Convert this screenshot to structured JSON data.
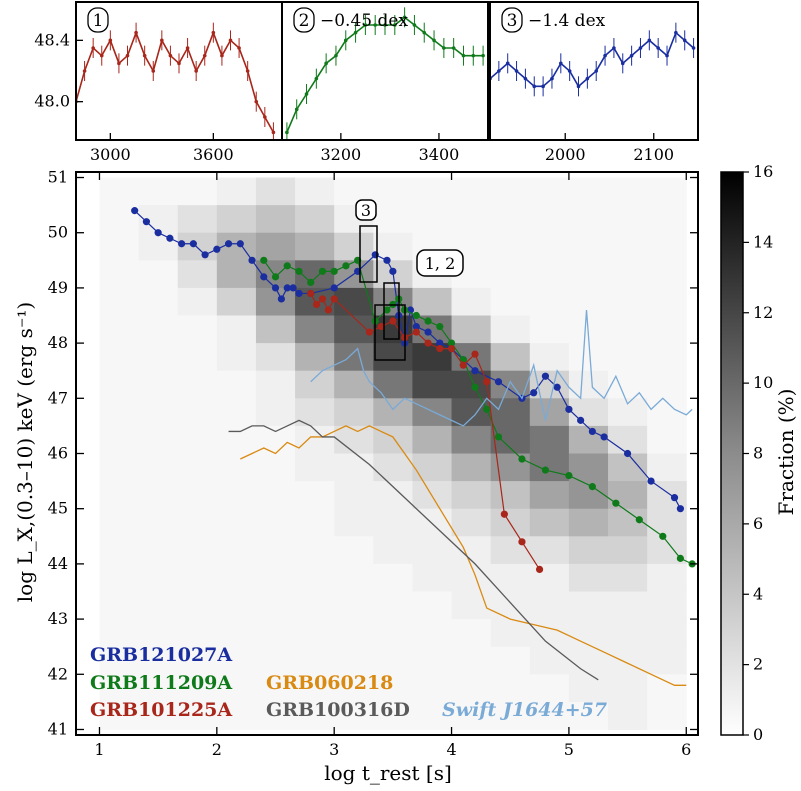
{
  "chart_data": [
    {
      "type": "heatmap",
      "panel": "main",
      "xlabel": "log t_rest [s]",
      "ylabel": "log L_X,(0.3–10) keV (erg s⁻¹)",
      "xlim": [
        0.8,
        6.1
      ],
      "ylim": [
        40.9,
        51.1
      ],
      "xticks": [
        "1",
        "2",
        "3",
        "4",
        "5",
        "6"
      ],
      "yticks": [
        "41",
        "42",
        "43",
        "44",
        "45",
        "46",
        "47",
        "48",
        "49",
        "50",
        "51"
      ],
      "colorbar": {
        "label": "Fraction (%)",
        "min": 0,
        "max": 16,
        "ticks": [
          "0",
          "2",
          "4",
          "6",
          "8",
          "10",
          "12",
          "14",
          "16"
        ]
      },
      "series": [
        {
          "name": "GRB121027A",
          "color": "#1a2ea0",
          "marker": "dot",
          "x": [
            1.3,
            1.4,
            1.5,
            1.6,
            1.7,
            1.8,
            1.9,
            2.0,
            2.1,
            2.2,
            2.3,
            2.4,
            2.5,
            2.55,
            2.6,
            2.65,
            2.7,
            2.8,
            3.0,
            3.2,
            3.35,
            3.45,
            3.5,
            3.55,
            3.6,
            3.65,
            3.7,
            3.8,
            3.9,
            4.0,
            4.1,
            4.2,
            4.4,
            4.6,
            4.7,
            4.8,
            4.9,
            5.0,
            5.1,
            5.2,
            5.3,
            5.5,
            5.7,
            5.9,
            5.95
          ],
          "y": [
            50.4,
            50.2,
            50.0,
            49.9,
            49.8,
            49.8,
            49.6,
            49.7,
            49.8,
            49.8,
            49.5,
            49.2,
            49.0,
            48.8,
            49.0,
            49.0,
            48.9,
            48.9,
            49.0,
            49.3,
            49.6,
            49.5,
            49.3,
            48.5,
            48.0,
            48.6,
            48.3,
            48.2,
            48.0,
            47.9,
            47.7,
            47.5,
            47.3,
            47.0,
            47.1,
            47.4,
            47.2,
            46.8,
            46.6,
            46.4,
            46.3,
            46.0,
            45.5,
            45.2,
            45.0
          ]
        },
        {
          "name": "GRB111209A",
          "color": "#0f7a1a",
          "marker": "dot",
          "x": [
            2.4,
            2.5,
            2.6,
            2.7,
            2.8,
            2.9,
            3.0,
            3.1,
            3.2,
            3.35,
            3.45,
            3.5,
            3.55,
            3.6,
            3.7,
            3.8,
            3.9,
            4.0,
            4.1,
            4.2,
            4.3,
            4.4,
            4.6,
            4.8,
            5.0,
            5.2,
            5.4,
            5.6,
            5.8,
            5.95,
            6.05
          ],
          "y": [
            49.5,
            49.2,
            49.4,
            49.3,
            49.1,
            49.3,
            49.3,
            49.4,
            49.5,
            48.4,
            48.6,
            48.7,
            48.8,
            48.6,
            48.5,
            48.4,
            48.3,
            48.0,
            47.7,
            47.2,
            46.8,
            46.3,
            45.9,
            45.7,
            45.6,
            45.4,
            45.1,
            44.8,
            44.5,
            44.1,
            44.0
          ]
        },
        {
          "name": "GRB101225A",
          "color": "#a8261a",
          "marker": "dot",
          "x": [
            2.8,
            2.85,
            2.9,
            2.95,
            3.0,
            3.3,
            3.4,
            3.5,
            3.6,
            3.7,
            3.8,
            3.9,
            4.0,
            4.1,
            4.2,
            4.3,
            4.45,
            4.6,
            4.75
          ],
          "y": [
            48.9,
            48.7,
            48.8,
            48.6,
            48.8,
            48.2,
            48.3,
            48.4,
            48.1,
            48.2,
            48.0,
            47.9,
            47.9,
            47.6,
            47.8,
            47.3,
            44.9,
            44.4,
            43.9
          ]
        },
        {
          "name": "GRB060218",
          "color": "#d98a12",
          "marker": "line",
          "x": [
            2.2,
            2.3,
            2.4,
            2.5,
            2.6,
            2.7,
            2.8,
            2.9,
            3.0,
            3.1,
            3.2,
            3.3,
            3.4,
            3.5,
            3.7,
            3.9,
            4.1,
            4.2,
            4.3,
            4.5,
            4.7,
            4.9,
            5.1,
            5.3,
            5.5,
            5.7,
            5.9,
            6.0
          ],
          "y": [
            45.9,
            46.0,
            46.1,
            46.0,
            46.2,
            46.1,
            46.3,
            46.3,
            46.4,
            46.5,
            46.4,
            46.5,
            46.4,
            46.3,
            45.7,
            45.0,
            44.3,
            43.8,
            43.2,
            43.0,
            42.9,
            42.8,
            42.6,
            42.4,
            42.2,
            42.0,
            41.8,
            41.8
          ]
        },
        {
          "name": "GRB100316D",
          "color": "#5a5a5a",
          "marker": "line",
          "x": [
            2.1,
            2.2,
            2.3,
            2.4,
            2.5,
            2.6,
            2.7,
            2.8,
            2.9,
            3.0,
            3.3,
            3.6,
            3.9,
            4.2,
            4.5,
            4.8,
            5.1,
            5.25
          ],
          "y": [
            46.4,
            46.4,
            46.5,
            46.5,
            46.4,
            46.5,
            46.6,
            46.5,
            46.3,
            46.3,
            45.8,
            45.2,
            44.6,
            44.0,
            43.3,
            42.6,
            42.1,
            41.9
          ]
        },
        {
          "name": "Swift J1644+57",
          "color": "#7aaad6",
          "marker": "line",
          "x": [
            2.8,
            2.9,
            3.0,
            3.1,
            3.2,
            3.25,
            3.3,
            3.4,
            3.5,
            3.6,
            3.7,
            3.8,
            3.9,
            4.0,
            4.1,
            4.2,
            4.3,
            4.4,
            4.5,
            4.6,
            4.7,
            4.8,
            4.9,
            5.0,
            5.1,
            5.15,
            5.2,
            5.3,
            5.4,
            5.5,
            5.6,
            5.7,
            5.8,
            5.9,
            6.0,
            6.05
          ],
          "y": [
            47.3,
            47.5,
            47.6,
            47.7,
            47.9,
            47.5,
            47.3,
            47.1,
            46.8,
            47.0,
            46.9,
            46.8,
            46.7,
            46.6,
            46.5,
            46.7,
            47.0,
            46.8,
            47.3,
            47.0,
            47.6,
            46.6,
            47.5,
            47.2,
            47.0,
            48.6,
            47.2,
            47.0,
            47.4,
            46.9,
            47.1,
            46.8,
            47.0,
            46.8,
            46.7,
            46.8
          ]
        }
      ],
      "annotations": [
        "3",
        "1, 2"
      ],
      "heatmap": [
        [
          0,
          0,
          0,
          1,
          2,
          1,
          0,
          0,
          0,
          0,
          0,
          0,
          0,
          0,
          0
        ],
        [
          0,
          1,
          2,
          3,
          4,
          3,
          1,
          0,
          0,
          0,
          0,
          0,
          0,
          0,
          0
        ],
        [
          0,
          1,
          3,
          5,
          6,
          5,
          3,
          1,
          0,
          0,
          0,
          0,
          0,
          0,
          0
        ],
        [
          0,
          0,
          2,
          5,
          8,
          10,
          7,
          3,
          1,
          0,
          0,
          0,
          0,
          0,
          0
        ],
        [
          0,
          0,
          1,
          3,
          7,
          11,
          12,
          8,
          4,
          1,
          0,
          0,
          0,
          0,
          0
        ],
        [
          0,
          0,
          0,
          1,
          4,
          8,
          11,
          13,
          9,
          4,
          1,
          0,
          0,
          0,
          0
        ],
        [
          0,
          0,
          0,
          1,
          2,
          5,
          9,
          12,
          13,
          9,
          4,
          1,
          0,
          0,
          0
        ],
        [
          0,
          0,
          0,
          0,
          1,
          3,
          5,
          9,
          12,
          12,
          8,
          3,
          1,
          0,
          0
        ],
        [
          0,
          0,
          0,
          0,
          1,
          2,
          3,
          5,
          8,
          11,
          10,
          6,
          2,
          1,
          0
        ],
        [
          0,
          0,
          0,
          0,
          0,
          1,
          2,
          3,
          5,
          8,
          10,
          9,
          5,
          2,
          0
        ],
        [
          0,
          0,
          0,
          0,
          0,
          1,
          1,
          2,
          3,
          5,
          7,
          9,
          7,
          4,
          1
        ],
        [
          0,
          0,
          0,
          0,
          0,
          0,
          1,
          1,
          2,
          3,
          4,
          6,
          7,
          5,
          2
        ],
        [
          0,
          0,
          0,
          0,
          0,
          0,
          1,
          1,
          1,
          2,
          3,
          4,
          5,
          4,
          2
        ],
        [
          0,
          0,
          0,
          0,
          0,
          0,
          0,
          1,
          1,
          1,
          2,
          2,
          3,
          3,
          2
        ],
        [
          0,
          0,
          0,
          0,
          0,
          0,
          0,
          0,
          1,
          1,
          1,
          1,
          2,
          2,
          1
        ],
        [
          0,
          0,
          0,
          0,
          0,
          0,
          0,
          0,
          0,
          1,
          1,
          1,
          1,
          1,
          1
        ],
        [
          0,
          0,
          0,
          0,
          0,
          0,
          0,
          0,
          0,
          0,
          1,
          1,
          1,
          1,
          1
        ],
        [
          0,
          0,
          0,
          0,
          0,
          0,
          0,
          0,
          0,
          0,
          0,
          1,
          1,
          1,
          1
        ],
        [
          0,
          0,
          0,
          0,
          0,
          0,
          0,
          0,
          0,
          0,
          0,
          0,
          1,
          1,
          0
        ],
        [
          0,
          0,
          0,
          0,
          0,
          0,
          0,
          0,
          0,
          0,
          0,
          0,
          0,
          1,
          0
        ]
      ],
      "heatmap_x_range": [
        1.0,
        6.0
      ],
      "heatmap_y_range": [
        51.0,
        41.0
      ]
    },
    {
      "type": "line",
      "panel": "inset-1",
      "label": "1",
      "note": "",
      "color": "#a8261a",
      "xlim": [
        2800,
        4000
      ],
      "ylim": [
        47.75,
        48.65
      ],
      "xticks": [
        "3000",
        "3600"
      ],
      "yticks": [
        "48.0",
        "48.4"
      ],
      "x": [
        2800,
        2850,
        2900,
        2950,
        3000,
        3050,
        3100,
        3150,
        3200,
        3250,
        3300,
        3350,
        3400,
        3450,
        3500,
        3550,
        3600,
        3650,
        3700,
        3750,
        3800,
        3850,
        3900,
        3950
      ],
      "y": [
        48.0,
        48.2,
        48.35,
        48.3,
        48.4,
        48.25,
        48.3,
        48.45,
        48.3,
        48.2,
        48.4,
        48.3,
        48.25,
        48.35,
        48.2,
        48.3,
        48.45,
        48.3,
        48.4,
        48.35,
        48.2,
        48.0,
        47.9,
        47.8
      ]
    },
    {
      "type": "line",
      "panel": "inset-2",
      "label": "2",
      "note": "−0.45 dex",
      "color": "#0f7a1a",
      "xlim": [
        3080,
        3500
      ],
      "ylim": [
        47.75,
        48.65
      ],
      "xticks": [
        "3200",
        "3400"
      ],
      "x": [
        3090,
        3110,
        3130,
        3150,
        3170,
        3190,
        3210,
        3230,
        3250,
        3270,
        3290,
        3310,
        3330,
        3350,
        3370,
        3390,
        3410,
        3430,
        3450,
        3470,
        3490
      ],
      "y": [
        47.8,
        47.95,
        48.05,
        48.15,
        48.25,
        48.3,
        48.4,
        48.45,
        48.5,
        48.5,
        48.5,
        48.5,
        48.55,
        48.5,
        48.45,
        48.4,
        48.35,
        48.35,
        48.3,
        48.3,
        48.3
      ]
    },
    {
      "type": "line",
      "panel": "inset-3",
      "label": "3",
      "note": "−1.4 dex",
      "color": "#1a2ea0",
      "xlim": [
        1915,
        2150
      ],
      "ylim": [
        47.75,
        48.65
      ],
      "xticks": [
        "2000",
        "2100"
      ],
      "x": [
        1915,
        1925,
        1935,
        1945,
        1955,
        1965,
        1975,
        1985,
        1995,
        2005,
        2015,
        2025,
        2035,
        2045,
        2055,
        2065,
        2075,
        2085,
        2095,
        2105,
        2115,
        2125,
        2135,
        2145
      ],
      "y": [
        48.15,
        48.2,
        48.25,
        48.2,
        48.15,
        48.1,
        48.1,
        48.15,
        48.25,
        48.2,
        48.1,
        48.15,
        48.2,
        48.3,
        48.35,
        48.25,
        48.3,
        48.35,
        48.4,
        48.35,
        48.3,
        48.45,
        48.4,
        48.35
      ]
    }
  ],
  "legend": [
    {
      "text": "GRB121027A",
      "color": "#1a2ea0"
    },
    {
      "text": "GRB111209A",
      "color": "#0f7a1a"
    },
    {
      "text": "GRB101225A",
      "color": "#a8261a"
    },
    {
      "text": "GRB060218",
      "color": "#d98a12"
    },
    {
      "text": "GRB100316D",
      "color": "#5a5a5a"
    },
    {
      "text": "Swift J1644+57",
      "color": "#7aaad6"
    }
  ]
}
